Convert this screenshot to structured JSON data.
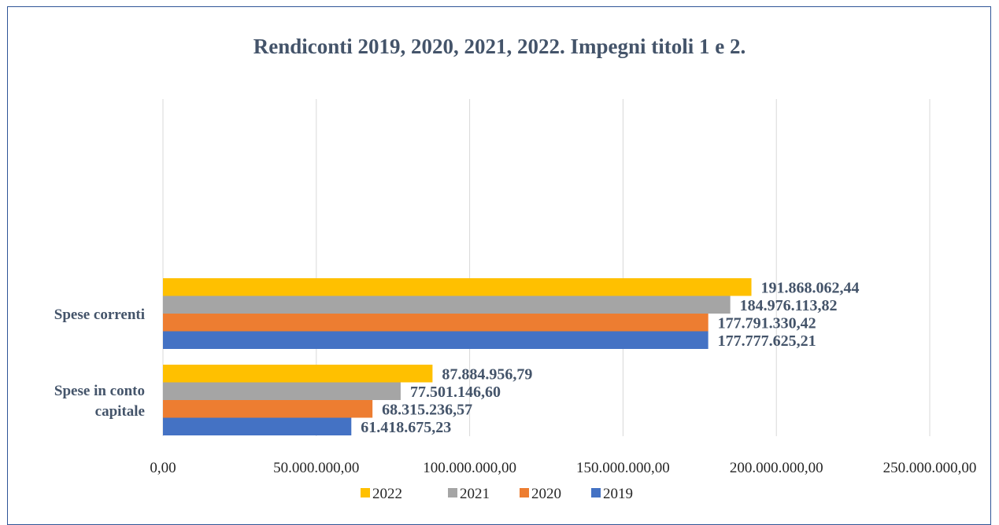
{
  "chart_data": {
    "type": "bar",
    "orientation": "horizontal",
    "title": "Rendiconti 2019, 2020, 2021, 2022. Impegni titoli 1 e 2.",
    "categories": [
      "Spese correnti",
      "Spese in conto capitale"
    ],
    "series": [
      {
        "name": "2022",
        "color": "#ffc000",
        "values": [
          191868062.44,
          87884956.79
        ],
        "labels": [
          "191.868.062,44",
          "87.884.956,79"
        ]
      },
      {
        "name": "2021",
        "color": "#a5a5a5",
        "values": [
          184976113.82,
          77501146.6
        ],
        "labels": [
          "184.976.113,82",
          "77.501.146,60"
        ]
      },
      {
        "name": "2020",
        "color": "#ed7d31",
        "values": [
          177791330.42,
          68315236.57
        ],
        "labels": [
          "177.791.330,42",
          "68.315.236,57"
        ]
      },
      {
        "name": "2019",
        "color": "#4472c4",
        "values": [
          177777625.21,
          61418675.23
        ],
        "labels": [
          "177.777.625,21",
          "61.418.675,23"
        ]
      }
    ],
    "xlim": [
      0,
      250000000
    ],
    "xticks": [
      0,
      50000000,
      100000000,
      150000000,
      200000000,
      250000000
    ],
    "xtick_labels": [
      "0,00",
      "50.000.000,00",
      "100.000.000,00",
      "150.000.000,00",
      "200.000.000,00",
      "250.000.000,00"
    ],
    "grid": true,
    "legend_position": "bottom",
    "legend": [
      "2022",
      "2021",
      "2020",
      "2019"
    ]
  }
}
